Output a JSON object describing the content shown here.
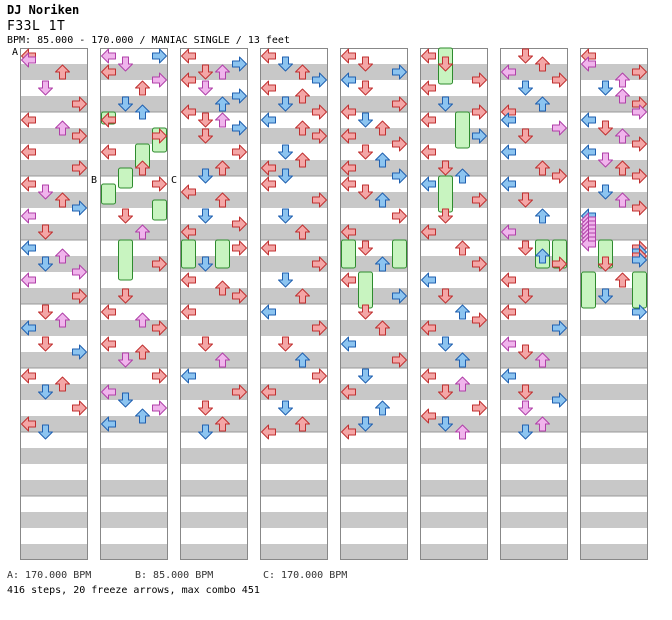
{
  "header": {
    "artist": "DJ Noriken",
    "title": "F33L 1T",
    "info": "BPM: 85.000 - 170.000 / MANIAC SINGLE / 13 feet"
  },
  "bpm_markers": [
    {
      "label": "A",
      "legend": "A: 170.000 BPM"
    },
    {
      "label": "B",
      "legend": "B: 85.000 BPM"
    },
    {
      "label": "C",
      "legend": "C: 170.000 BPM"
    }
  ],
  "footer": "416 steps, 20 freeze arrows, max combo 451",
  "colors": {
    "band": "#c8c8c8",
    "border": "#888888",
    "red_arrow": "#f4a6a6",
    "blue_arrow": "#8cc4f0",
    "pink_arrow": "#f0b4ec",
    "freeze": "#c8f4c0",
    "marker_line": "#3a6fd8"
  },
  "icons": [
    "left-arrow-icon",
    "down-arrow-icon",
    "up-arrow-icon",
    "right-arrow-icon",
    "freeze-arrow-icon"
  ],
  "chart_data": {
    "type": "step-chart",
    "columns": 8,
    "measures_per_column": 8,
    "rows_per_measure": 4,
    "lanes": [
      "left",
      "down",
      "up",
      "right"
    ],
    "columns_notes": [
      [
        [
          0,
          0,
          "red"
        ],
        [
          1,
          0,
          "pink"
        ],
        [
          4,
          2,
          "red"
        ],
        [
          8,
          1,
          "pink"
        ],
        [
          12,
          3,
          "red"
        ],
        [
          16,
          0,
          "red"
        ],
        [
          18,
          2,
          "pink"
        ],
        [
          20,
          3,
          "red"
        ],
        [
          24,
          0,
          "red"
        ],
        [
          28,
          3,
          "red"
        ],
        [
          32,
          0,
          "red"
        ],
        [
          34,
          1,
          "pink"
        ],
        [
          36,
          2,
          "red"
        ],
        [
          38,
          3,
          "blue"
        ],
        [
          40,
          0,
          "pink"
        ],
        [
          44,
          1,
          "red"
        ],
        [
          48,
          0,
          "blue"
        ],
        [
          50,
          2,
          "pink"
        ],
        [
          52,
          1,
          "blue"
        ],
        [
          54,
          3,
          "pink"
        ],
        [
          56,
          0,
          "pink"
        ],
        [
          60,
          3,
          "red"
        ],
        [
          64,
          1,
          "red"
        ],
        [
          66,
          2,
          "pink"
        ],
        [
          68,
          0,
          "blue"
        ],
        [
          72,
          1,
          "red"
        ],
        [
          74,
          3,
          "blue"
        ],
        [
          80,
          0,
          "red"
        ],
        [
          82,
          2,
          "red"
        ],
        [
          84,
          1,
          "blue"
        ],
        [
          88,
          3,
          "red"
        ],
        [
          92,
          0,
          "red"
        ],
        [
          94,
          1,
          "blue"
        ]
      ],
      [
        [
          0,
          0,
          "pink"
        ],
        [
          0,
          3,
          "blue"
        ],
        [
          2,
          1,
          "pink"
        ],
        [
          4,
          0,
          "red"
        ],
        [
          6,
          3,
          "pink"
        ],
        [
          8,
          2,
          "red"
        ],
        [
          12,
          1,
          "blue"
        ],
        [
          14,
          2,
          "blue"
        ],
        [
          16,
          0,
          "red"
        ],
        [
          20,
          3,
          "red"
        ],
        [
          24,
          0,
          "red"
        ],
        [
          28,
          2,
          "red"
        ],
        [
          32,
          3,
          "red"
        ],
        [
          40,
          1,
          "red"
        ],
        [
          44,
          2,
          "pink"
        ],
        [
          52,
          3,
          "red"
        ],
        [
          60,
          1,
          "red"
        ],
        [
          64,
          0,
          "red"
        ],
        [
          66,
          2,
          "pink"
        ],
        [
          68,
          3,
          "red"
        ],
        [
          72,
          0,
          "red"
        ],
        [
          74,
          2,
          "red"
        ],
        [
          76,
          1,
          "pink"
        ],
        [
          80,
          3,
          "red"
        ],
        [
          84,
          0,
          "pink"
        ],
        [
          86,
          1,
          "blue"
        ],
        [
          88,
          3,
          "pink"
        ],
        [
          90,
          2,
          "blue"
        ],
        [
          92,
          0,
          "blue"
        ]
      ],
      [
        [
          0,
          0,
          "red"
        ],
        [
          2,
          3,
          "blue"
        ],
        [
          4,
          1,
          "red"
        ],
        [
          4,
          2,
          "pink"
        ],
        [
          6,
          0,
          "red"
        ],
        [
          8,
          1,
          "pink"
        ],
        [
          10,
          3,
          "blue"
        ],
        [
          12,
          2,
          "blue"
        ],
        [
          14,
          0,
          "red"
        ],
        [
          16,
          1,
          "red"
        ],
        [
          16,
          2,
          "pink"
        ],
        [
          18,
          3,
          "blue"
        ],
        [
          20,
          1,
          "red"
        ],
        [
          24,
          3,
          "red"
        ],
        [
          28,
          2,
          "red"
        ],
        [
          30,
          1,
          "blue"
        ],
        [
          34,
          0,
          "red"
        ],
        [
          36,
          2,
          "red"
        ],
        [
          40,
          1,
          "blue"
        ],
        [
          42,
          3,
          "red"
        ],
        [
          44,
          0,
          "red"
        ],
        [
          48,
          3,
          "red"
        ],
        [
          52,
          1,
          "blue"
        ],
        [
          56,
          0,
          "red"
        ],
        [
          58,
          2,
          "red"
        ],
        [
          60,
          3,
          "red"
        ],
        [
          64,
          0,
          "red"
        ],
        [
          72,
          1,
          "red"
        ],
        [
          76,
          2,
          "pink"
        ],
        [
          80,
          0,
          "blue"
        ],
        [
          84,
          3,
          "red"
        ],
        [
          88,
          1,
          "red"
        ],
        [
          92,
          2,
          "red"
        ],
        [
          94,
          1,
          "blue"
        ]
      ],
      [
        [
          0,
          0,
          "red"
        ],
        [
          2,
          1,
          "blue"
        ],
        [
          4,
          2,
          "red"
        ],
        [
          6,
          3,
          "blue"
        ],
        [
          8,
          0,
          "red"
        ],
        [
          10,
          2,
          "red"
        ],
        [
          12,
          1,
          "blue"
        ],
        [
          14,
          3,
          "red"
        ],
        [
          16,
          0,
          "blue"
        ],
        [
          18,
          2,
          "red"
        ],
        [
          20,
          3,
          "red"
        ],
        [
          24,
          1,
          "blue"
        ],
        [
          26,
          2,
          "red"
        ],
        [
          28,
          0,
          "red"
        ],
        [
          30,
          1,
          "blue"
        ],
        [
          32,
          0,
          "red"
        ],
        [
          36,
          3,
          "red"
        ],
        [
          40,
          1,
          "blue"
        ],
        [
          44,
          2,
          "red"
        ],
        [
          48,
          0,
          "red"
        ],
        [
          52,
          3,
          "red"
        ],
        [
          56,
          1,
          "blue"
        ],
        [
          60,
          2,
          "red"
        ],
        [
          64,
          0,
          "blue"
        ],
        [
          68,
          3,
          "red"
        ],
        [
          72,
          1,
          "red"
        ],
        [
          76,
          2,
          "blue"
        ],
        [
          80,
          3,
          "red"
        ],
        [
          84,
          0,
          "red"
        ],
        [
          88,
          1,
          "blue"
        ],
        [
          92,
          2,
          "red"
        ],
        [
          94,
          0,
          "red"
        ]
      ],
      [
        [
          0,
          0,
          "red"
        ],
        [
          2,
          1,
          "red"
        ],
        [
          4,
          3,
          "blue"
        ],
        [
          6,
          0,
          "blue"
        ],
        [
          8,
          1,
          "red"
        ],
        [
          12,
          3,
          "red"
        ],
        [
          14,
          0,
          "red"
        ],
        [
          16,
          1,
          "blue"
        ],
        [
          18,
          2,
          "red"
        ],
        [
          20,
          0,
          "red"
        ],
        [
          22,
          3,
          "red"
        ],
        [
          24,
          1,
          "red"
        ],
        [
          26,
          2,
          "blue"
        ],
        [
          28,
          0,
          "red"
        ],
        [
          30,
          3,
          "blue"
        ],
        [
          32,
          0,
          "red"
        ],
        [
          34,
          1,
          "red"
        ],
        [
          36,
          2,
          "blue"
        ],
        [
          40,
          3,
          "red"
        ],
        [
          44,
          0,
          "red"
        ],
        [
          48,
          1,
          "red"
        ],
        [
          52,
          2,
          "blue"
        ],
        [
          56,
          0,
          "red"
        ],
        [
          60,
          3,
          "blue"
        ],
        [
          64,
          1,
          "red"
        ],
        [
          68,
          2,
          "red"
        ],
        [
          72,
          0,
          "blue"
        ],
        [
          76,
          3,
          "red"
        ],
        [
          80,
          1,
          "blue"
        ],
        [
          84,
          0,
          "red"
        ],
        [
          88,
          2,
          "blue"
        ],
        [
          92,
          1,
          "blue"
        ],
        [
          94,
          0,
          "red"
        ]
      ],
      [
        [
          0,
          0,
          "red"
        ],
        [
          2,
          1,
          "red"
        ],
        [
          6,
          3,
          "red"
        ],
        [
          8,
          0,
          "red"
        ],
        [
          12,
          1,
          "blue"
        ],
        [
          14,
          3,
          "red"
        ],
        [
          16,
          0,
          "red"
        ],
        [
          20,
          3,
          "blue"
        ],
        [
          24,
          0,
          "red"
        ],
        [
          28,
          1,
          "red"
        ],
        [
          30,
          2,
          "blue"
        ],
        [
          32,
          0,
          "blue"
        ],
        [
          36,
          3,
          "red"
        ],
        [
          40,
          1,
          "red"
        ],
        [
          44,
          0,
          "red"
        ],
        [
          48,
          2,
          "red"
        ],
        [
          52,
          3,
          "red"
        ],
        [
          56,
          0,
          "blue"
        ],
        [
          60,
          1,
          "red"
        ],
        [
          64,
          2,
          "blue"
        ],
        [
          66,
          3,
          "red"
        ],
        [
          68,
          0,
          "red"
        ],
        [
          72,
          1,
          "blue"
        ],
        [
          76,
          2,
          "blue"
        ],
        [
          80,
          0,
          "red"
        ],
        [
          82,
          2,
          "pink"
        ],
        [
          84,
          1,
          "red"
        ],
        [
          88,
          3,
          "red"
        ],
        [
          90,
          0,
          "red"
        ],
        [
          92,
          1,
          "blue"
        ],
        [
          94,
          2,
          "pink"
        ]
      ],
      [
        [
          0,
          1,
          "red"
        ],
        [
          2,
          2,
          "red"
        ],
        [
          4,
          0,
          "pink"
        ],
        [
          6,
          3,
          "red"
        ],
        [
          8,
          1,
          "blue"
        ],
        [
          12,
          2,
          "blue"
        ],
        [
          14,
          0,
          "red"
        ],
        [
          16,
          0,
          "blue"
        ],
        [
          18,
          3,
          "pink"
        ],
        [
          20,
          1,
          "red"
        ],
        [
          24,
          0,
          "blue"
        ],
        [
          28,
          2,
          "red"
        ],
        [
          30,
          3,
          "red"
        ],
        [
          32,
          0,
          "blue"
        ],
        [
          36,
          1,
          "red"
        ],
        [
          40,
          2,
          "blue"
        ],
        [
          44,
          0,
          "pink"
        ],
        [
          48,
          1,
          "red"
        ],
        [
          50,
          2,
          "blue"
        ],
        [
          52,
          3,
          "red"
        ],
        [
          56,
          0,
          "red"
        ],
        [
          60,
          1,
          "red"
        ],
        [
          64,
          0,
          "red"
        ],
        [
          68,
          3,
          "blue"
        ],
        [
          72,
          0,
          "pink"
        ],
        [
          74,
          1,
          "red"
        ],
        [
          76,
          2,
          "pink"
        ],
        [
          80,
          0,
          "blue"
        ],
        [
          84,
          1,
          "red"
        ],
        [
          86,
          3,
          "blue"
        ],
        [
          88,
          1,
          "pink"
        ],
        [
          92,
          2,
          "pink"
        ],
        [
          94,
          1,
          "blue"
        ]
      ],
      [
        [
          0,
          0,
          "red"
        ],
        [
          2,
          0,
          "pink"
        ],
        [
          4,
          3,
          "red"
        ],
        [
          6,
          2,
          "pink"
        ],
        [
          8,
          1,
          "blue"
        ],
        [
          10,
          2,
          "pink"
        ],
        [
          12,
          3,
          "red"
        ],
        [
          14,
          3,
          "pink"
        ],
        [
          16,
          0,
          "blue"
        ],
        [
          18,
          1,
          "red"
        ],
        [
          20,
          2,
          "pink"
        ],
        [
          22,
          3,
          "red"
        ],
        [
          24,
          0,
          "blue"
        ],
        [
          26,
          1,
          "pink"
        ],
        [
          28,
          2,
          "red"
        ],
        [
          30,
          3,
          "red"
        ],
        [
          32,
          0,
          "red"
        ],
        [
          34,
          1,
          "blue"
        ],
        [
          36,
          2,
          "pink"
        ],
        [
          38,
          3,
          "red"
        ],
        [
          40,
          0,
          "blue"
        ],
        [
          41,
          0,
          "pink"
        ],
        [
          42,
          0,
          "pink"
        ],
        [
          43,
          0,
          "pink"
        ],
        [
          44,
          0,
          "pink"
        ],
        [
          45,
          0,
          "pink"
        ],
        [
          46,
          0,
          "pink"
        ],
        [
          47,
          0,
          "pink"
        ],
        [
          48,
          3,
          "red"
        ],
        [
          49,
          3,
          "blue"
        ],
        [
          50,
          3,
          "red"
        ],
        [
          51,
          3,
          "blue"
        ],
        [
          52,
          1,
          "red"
        ],
        [
          56,
          2,
          "red"
        ],
        [
          60,
          1,
          "blue"
        ],
        [
          64,
          3,
          "blue"
        ]
      ]
    ],
    "freezes": [
      [],
      [
        [
          16,
          19,
          0
        ],
        [
          20,
          26,
          3
        ],
        [
          24,
          30,
          2
        ],
        [
          30,
          35,
          1
        ],
        [
          34,
          39,
          0
        ],
        [
          38,
          43,
          3
        ],
        [
          48,
          58,
          1
        ]
      ],
      [
        [
          48,
          55,
          0
        ],
        [
          48,
          55,
          2
        ]
      ],
      [],
      [
        [
          48,
          55,
          0
        ],
        [
          48,
          55,
          3
        ],
        [
          56,
          65,
          1
        ]
      ],
      [
        [
          0,
          9,
          1
        ],
        [
          16,
          25,
          2
        ],
        [
          32,
          41,
          1
        ]
      ],
      [
        [
          48,
          55,
          2
        ],
        [
          48,
          55,
          3
        ]
      ],
      [
        [
          48,
          55,
          1
        ],
        [
          56,
          65,
          0
        ],
        [
          56,
          65,
          3
        ]
      ]
    ]
  }
}
